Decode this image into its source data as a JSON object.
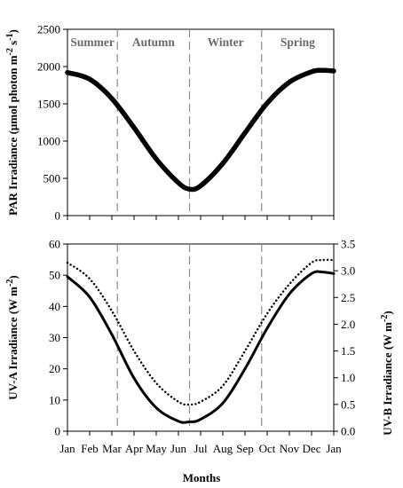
{
  "xlabel": "Months",
  "months": [
    "Jan",
    "Feb",
    "Mar",
    "Apr",
    "May",
    "Jun",
    "Jul",
    "Aug",
    "Sep",
    "Oct",
    "Nov",
    "Dec",
    "Jan"
  ],
  "seasons": [
    "Summer",
    "Autumn",
    "Winter",
    "Spring"
  ],
  "chart_data": [
    {
      "type": "line",
      "panel": "top",
      "ylabel": "PAR Irradiance (μmol photon m-2 s-1)",
      "ylim": [
        0,
        2500
      ],
      "yticks": [
        0,
        500,
        1000,
        1500,
        2000,
        2500
      ],
      "xlim": [
        0,
        12
      ],
      "x_unit": "months from start of January",
      "season_boundaries": [
        2.25,
        5.5,
        8.75
      ],
      "series": [
        {
          "x": [
            0,
            1,
            2,
            3,
            4,
            5,
            5.5,
            6,
            7,
            8,
            9,
            10,
            11,
            11.5,
            12
          ],
          "values": [
            1920,
            1830,
            1570,
            1180,
            760,
            440,
            355,
            400,
            700,
            1110,
            1510,
            1790,
            1930,
            1950,
            1940
          ]
        }
      ]
    },
    {
      "type": "line",
      "panel": "bottom",
      "ylabel": "UV-A Irradiance (W m-2)",
      "ylabel_right": "UV-B Irradiance (W m-2)",
      "ylim": [
        0,
        60
      ],
      "yticks": [
        0,
        10,
        20,
        30,
        40,
        50,
        60
      ],
      "ylim_right": [
        0,
        3.5
      ],
      "yticks_right": [
        "0.0",
        "0.5",
        "1.0",
        "1.5",
        "2.0",
        "2.5",
        "3.0",
        "3.5"
      ],
      "xlim": [
        0,
        12
      ],
      "x_unit": "months from start of January",
      "season_boundaries": [
        2.25,
        5.5,
        8.75
      ],
      "series": [
        {
          "axis": "left",
          "style": "solid",
          "x": [
            0,
            1,
            2,
            3,
            4,
            5,
            5.5,
            6,
            7,
            8,
            9,
            10,
            11,
            11.5,
            12
          ],
          "values": [
            49.5,
            43,
            31,
            17,
            7.5,
            3.2,
            3,
            3.8,
            9,
            20,
            33,
            44,
            50.5,
            51,
            50.5
          ]
        },
        {
          "axis": "right",
          "style": "dotted",
          "x": [
            0,
            1,
            2,
            3,
            4,
            5,
            5.5,
            6,
            7,
            8,
            9,
            10,
            11,
            11.5,
            12
          ],
          "values": [
            3.15,
            2.85,
            2.25,
            1.5,
            0.9,
            0.55,
            0.5,
            0.55,
            0.85,
            1.5,
            2.2,
            2.75,
            3.15,
            3.2,
            3.2
          ]
        }
      ]
    }
  ]
}
